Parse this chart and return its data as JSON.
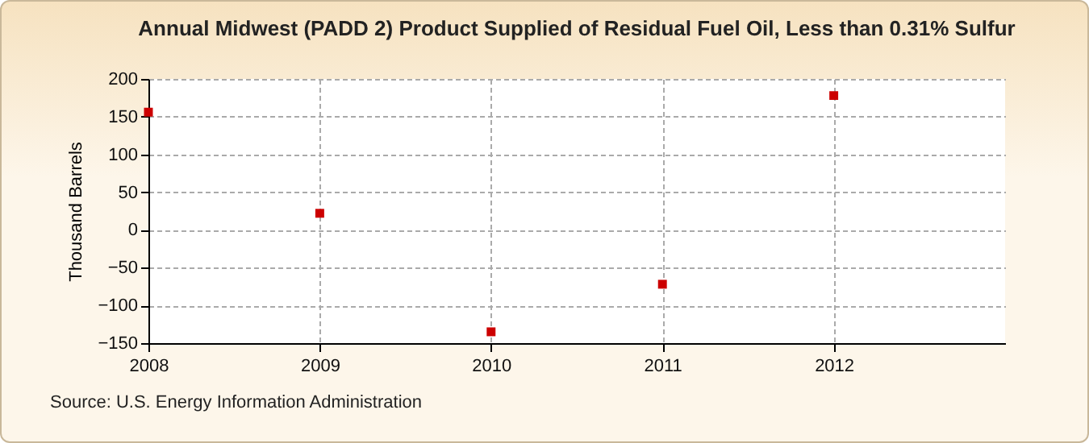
{
  "chart_data": {
    "type": "scatter",
    "title": "Annual Midwest (PADD 2) Product Supplied of Residual Fuel Oil, Less than 0.31% Sulfur",
    "ylabel": "Thousand Barrels",
    "annotations": [
      "Source: U.S. Energy Information Administration"
    ],
    "x": [
      2008,
      2009,
      2010,
      2011,
      2012
    ],
    "series": [
      {
        "color": "#cc0000",
        "values": [
          156,
          22,
          -135,
          -72,
          178
        ]
      }
    ],
    "xlim": [
      2008,
      2013
    ],
    "xticks": [
      2008,
      2009,
      2010,
      2011,
      2012
    ],
    "ylim": [
      -150,
      200
    ],
    "yticks": [
      -150,
      -100,
      -50,
      0,
      50,
      100,
      150,
      200
    ],
    "grid": true,
    "marker": "square"
  }
}
